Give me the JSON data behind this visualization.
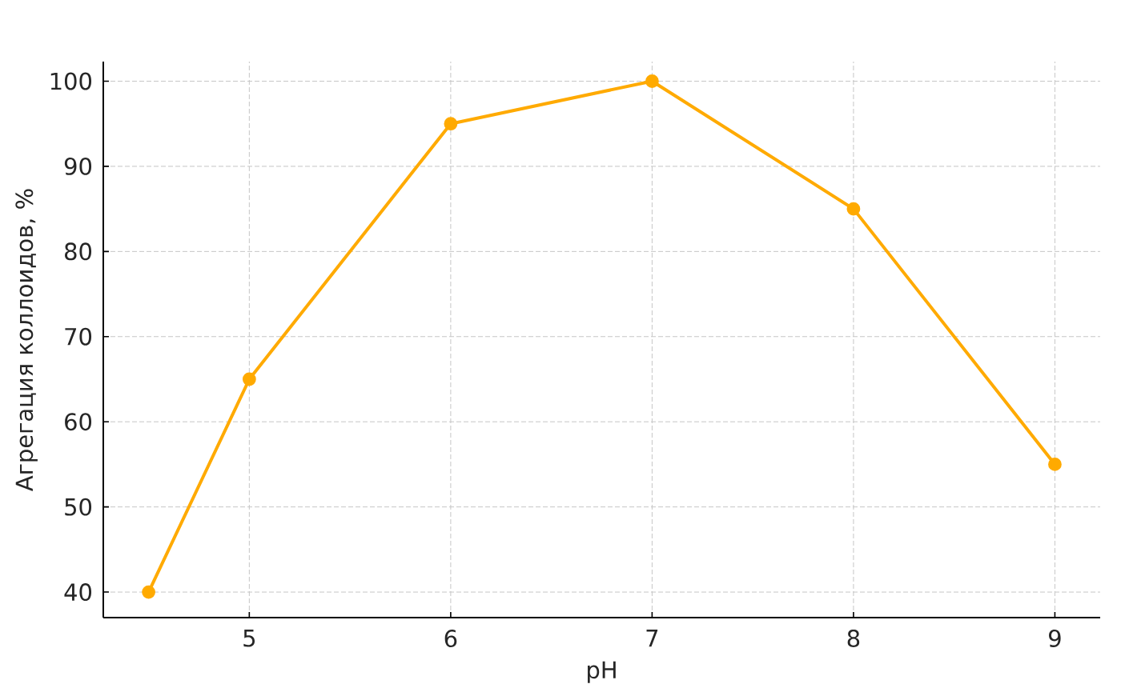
{
  "chart_data": {
    "type": "line",
    "xlabel": "pH",
    "ylabel": "Агрегация коллоидов, %",
    "x": [
      4.5,
      5,
      6,
      7,
      8,
      9
    ],
    "series": [
      {
        "color": "#ffaa00",
        "values": [
          40,
          65,
          95,
          100,
          85,
          55
        ]
      }
    ],
    "xlim": [
      4.275,
      9.225
    ],
    "ylim": [
      37,
      102.3
    ],
    "xticks": [
      5,
      6,
      7,
      8,
      9
    ],
    "yticks": [
      40,
      50,
      60,
      70,
      80,
      90,
      100
    ],
    "grid": true,
    "marker": "circle",
    "line_style": "solid"
  }
}
